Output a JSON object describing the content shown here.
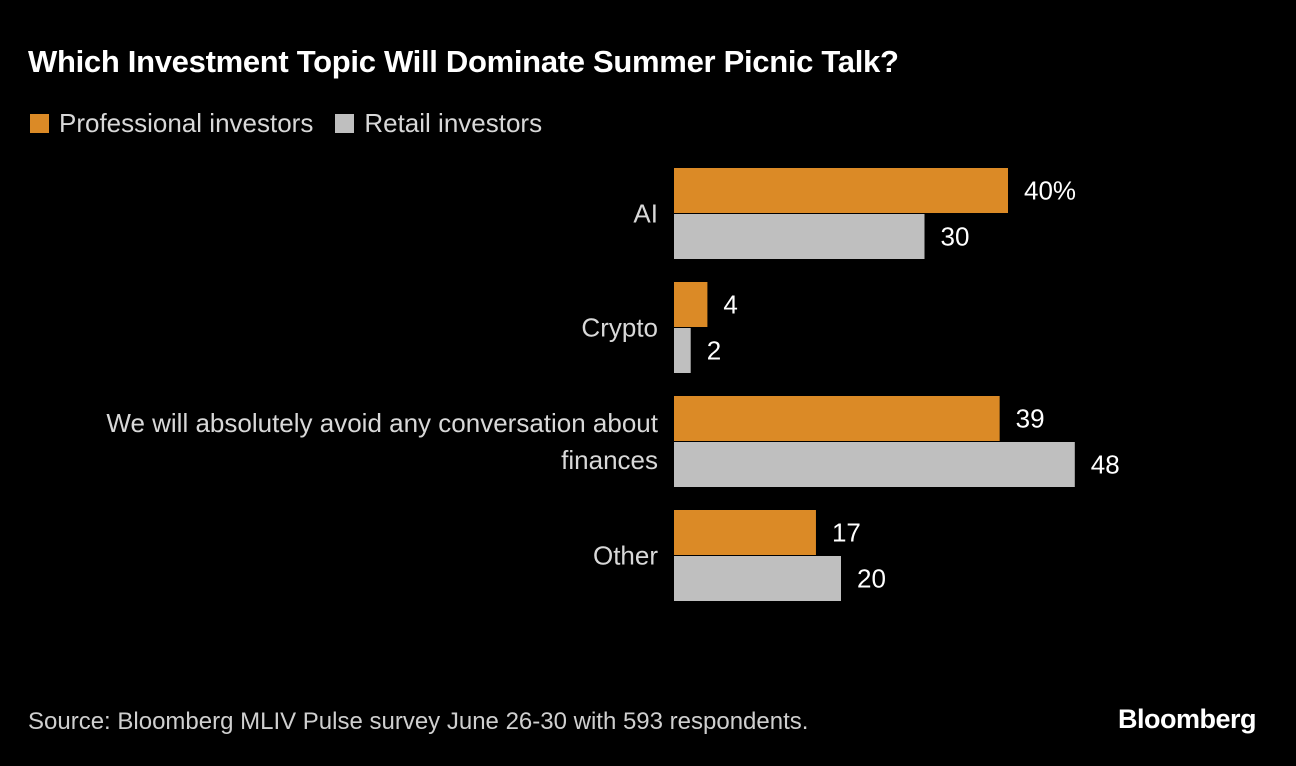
{
  "chart_data": {
    "type": "bar",
    "orientation": "horizontal",
    "title": "Which Investment Topic Will Dominate Summer Picnic Talk?",
    "categories": [
      "AI",
      "Crypto",
      "We will absolutely avoid any conversation about finances",
      "Other"
    ],
    "category_lines": [
      [
        "AI"
      ],
      [
        "Crypto"
      ],
      [
        "We will absolutely avoid any conversation about",
        "finances"
      ],
      [
        "Other"
      ]
    ],
    "series": [
      {
        "name": "Professional investors",
        "color": "#DB8A26",
        "values": [
          40,
          4,
          39,
          17
        ],
        "labels": [
          "40%",
          "4",
          "39",
          "17"
        ]
      },
      {
        "name": "Retail investors",
        "color": "#BFBFBF",
        "values": [
          30,
          2,
          48,
          20
        ],
        "labels": [
          "30",
          "2",
          "48",
          "20"
        ]
      }
    ],
    "xlim": [
      0,
      48
    ],
    "unit": "%",
    "grid": false,
    "legend": "top-left",
    "source": "Source: Bloomberg MLIV Pulse survey June 26-30 with 593 respondents."
  },
  "branding": {
    "logo": "Bloomberg"
  }
}
